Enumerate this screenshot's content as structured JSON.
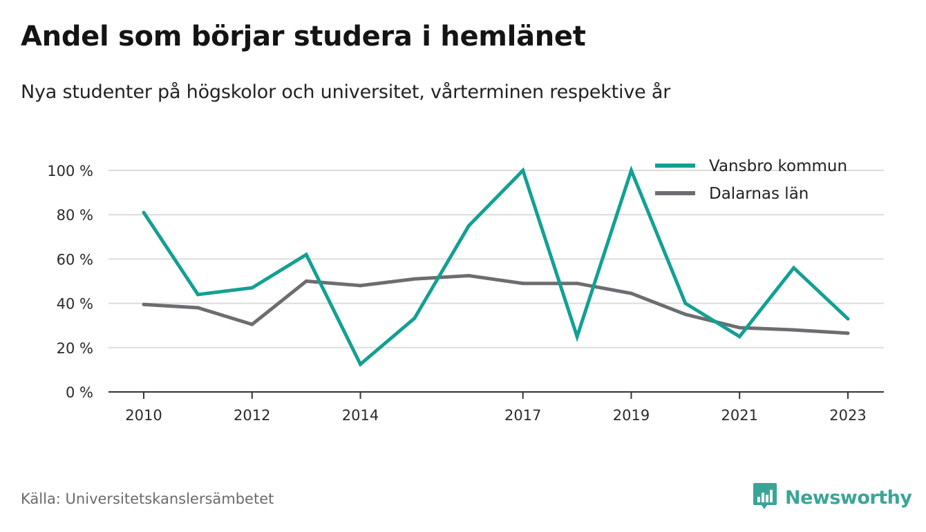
{
  "header": {
    "title": "Andel som börjar studera i hemlänet",
    "subtitle": "Nya studenter på högskolor och universitet, vårterminen respektive år"
  },
  "footer": {
    "source": "Källa: Universitetskanslersämbetet",
    "brand": "Newsworthy",
    "brand_icon": "bar-chart-speech-bubble-icon"
  },
  "colors": {
    "vansbro": "#13a093",
    "dalarna": "#6d6c70",
    "grid": "#dcdcdc",
    "axis": "#333333",
    "brand": "#3aa597"
  },
  "chart_data": {
    "type": "line",
    "x": [
      2010,
      2011,
      2012,
      2013,
      2014,
      2015,
      2016,
      2017,
      2018,
      2019,
      2020,
      2021,
      2022,
      2023
    ],
    "x_tick_labels": [
      "2010",
      "2012",
      "2014",
      "2017",
      "2019",
      "2021",
      "2023"
    ],
    "y_ticks": [
      0,
      20,
      40,
      60,
      80,
      100
    ],
    "y_tick_labels": [
      "0 %",
      "20 %",
      "40 %",
      "60 %",
      "80 %",
      "100 %"
    ],
    "ylim": [
      0,
      100
    ],
    "grid": true,
    "legend_position": "top-right",
    "series": [
      {
        "name": "Vansbro kommun",
        "values": [
          81,
          44,
          47,
          62,
          12.5,
          33.3,
          75,
          100,
          25,
          100,
          40,
          25,
          56,
          33
        ]
      },
      {
        "name": "Dalarnas län",
        "values": [
          39.5,
          38,
          30.5,
          50,
          48,
          51,
          52.5,
          49,
          49,
          44.5,
          35,
          29,
          28,
          26.5
        ]
      }
    ]
  }
}
